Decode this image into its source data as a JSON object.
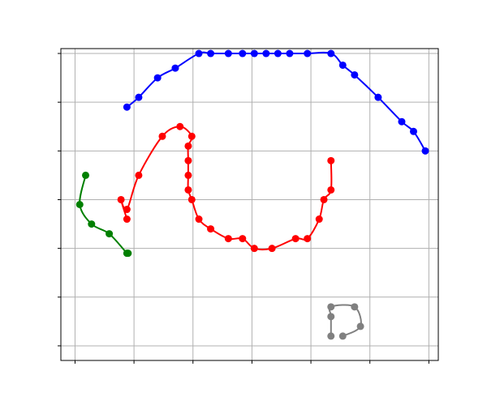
{
  "chart_data": {
    "type": "line",
    "title": "",
    "xlabel": "",
    "ylabel": "",
    "xlim": [
      -1.2,
      30.8
    ],
    "ylim": [
      -1.5,
      30.5
    ],
    "grid": true,
    "x_ticks": [
      0,
      5,
      10,
      15,
      20,
      25,
      30
    ],
    "y_ticks": [
      0,
      5,
      10,
      15,
      20,
      25,
      30
    ],
    "tick_labels_visible": false,
    "legend": "none",
    "series": [
      {
        "color": "#0000ff",
        "x": [
          4.4,
          5.4,
          7.0,
          8.5,
          10.5,
          11.5,
          13.0,
          14.2,
          15.2,
          16.2,
          17.2,
          18.2,
          19.7,
          21.7,
          22.7,
          23.7,
          25.7,
          27.7,
          28.7,
          29.7
        ],
        "y": [
          24.5,
          25.5,
          27.5,
          28.5,
          30.0,
          30.0,
          30.0,
          30.0,
          30.0,
          30.0,
          30.0,
          30.0,
          30.0,
          30.0,
          28.8,
          27.8,
          25.5,
          23.0,
          22.0,
          20.0
        ]
      },
      {
        "color": "#ff0000",
        "x": [
          21.7,
          21.7,
          21.1,
          20.7,
          19.7,
          18.7,
          16.7,
          15.2,
          14.2,
          13.0,
          11.5,
          10.5,
          9.9,
          9.6,
          9.6,
          9.6,
          9.6,
          9.9,
          8.9,
          7.4,
          5.4,
          4.4,
          3.9,
          4.4
        ],
        "y": [
          19.0,
          16.0,
          15.0,
          13.0,
          11.0,
          11.0,
          10.0,
          10.0,
          11.0,
          11.0,
          12.0,
          13.0,
          15.0,
          16.0,
          17.5,
          19.0,
          20.5,
          21.5,
          22.5,
          21.5,
          17.5,
          14.0,
          15.0,
          13.0
        ]
      },
      {
        "color": "#008000",
        "x": [
          0.9,
          0.4,
          1.4,
          2.9,
          4.4,
          4.5
        ],
        "y": [
          17.5,
          14.5,
          12.5,
          11.5,
          9.5,
          9.5
        ]
      },
      {
        "color": "#808080",
        "x": [
          22.7,
          24.2,
          23.7,
          21.7,
          21.7,
          21.7
        ],
        "y": [
          1.0,
          2.0,
          4.0,
          4.0,
          3.0,
          1.0
        ]
      }
    ]
  }
}
